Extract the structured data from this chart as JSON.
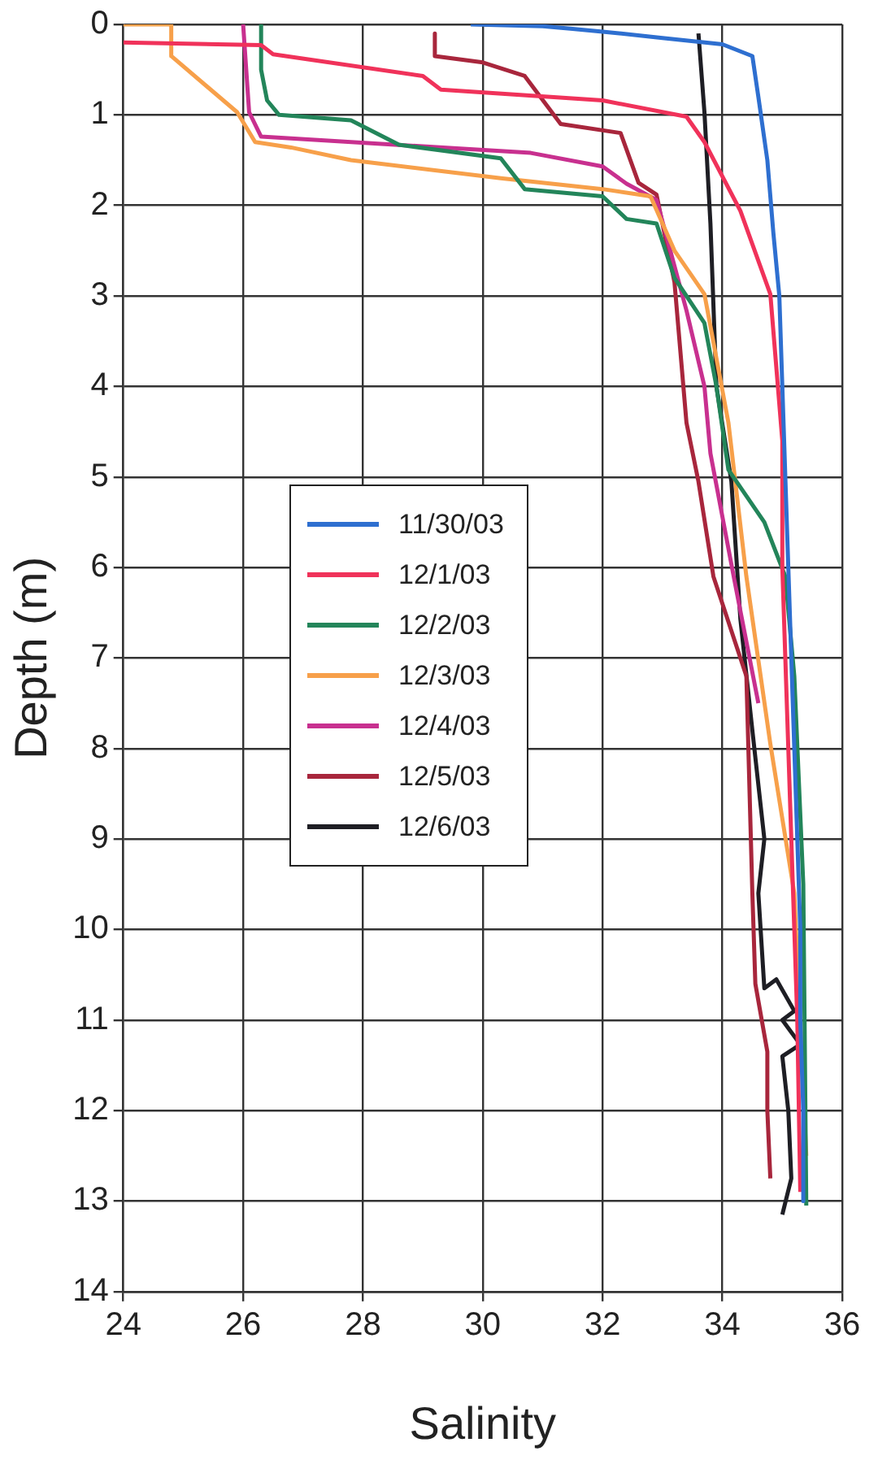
{
  "chart_data": {
    "type": "line",
    "xlabel": "Salinity",
    "ylabel": "Depth (m)",
    "xlim": [
      24,
      36
    ],
    "xticks": [
      24,
      26,
      28,
      30,
      32,
      34,
      36
    ],
    "ylim": [
      14,
      0
    ],
    "yticks": [
      0,
      1,
      2,
      3,
      4,
      5,
      6,
      7,
      8,
      9,
      10,
      11,
      12,
      13,
      14
    ],
    "grid": true,
    "legend": "left",
    "marker": "none",
    "line_style": "solid",
    "series": [
      {
        "name": "11/30/03",
        "color": "#2e6fd0",
        "x": [
          29.8,
          31,
          31.5,
          32,
          33,
          34,
          34.5,
          34.6,
          34.75,
          34.85,
          34.95,
          35.0,
          35.05,
          35.1,
          35.15,
          35.2,
          35.25,
          35.3,
          35.3,
          35.35,
          35.35
        ],
        "values": [
          0,
          0.02,
          0.05,
          0.08,
          0.15,
          0.22,
          0.35,
          0.8,
          1.5,
          2.3,
          3,
          4,
          5,
          6,
          7,
          8,
          9,
          10,
          11,
          12,
          13
        ]
      },
      {
        "name": "12/1/03",
        "color": "#f0325a",
        "x": [
          24,
          26.3,
          26.5,
          29,
          29.3,
          32,
          33.4,
          33.7,
          34.3,
          34.8,
          35,
          35.0,
          35.05,
          35.1,
          35.15,
          35.2,
          35.25,
          35.3
        ],
        "values": [
          0.2,
          0.23,
          0.33,
          0.57,
          0.72,
          0.84,
          1.02,
          1.3,
          2.06,
          2.98,
          4.6,
          6,
          7,
          8,
          9,
          10,
          11,
          12.9
        ]
      },
      {
        "name": "12/2/03",
        "color": "#23855a",
        "x": [
          26.3,
          26.3,
          26.4,
          26.6,
          27.8,
          28.6,
          30.3,
          30.7,
          32,
          32.4,
          32.9,
          33.2,
          33.7,
          33.9,
          34.1,
          34.7,
          35.05,
          35.2,
          35.35,
          35.4
        ],
        "values": [
          0,
          0.5,
          0.84,
          1.0,
          1.06,
          1.33,
          1.48,
          1.82,
          1.9,
          2.15,
          2.2,
          2.8,
          3.3,
          4.0,
          4.92,
          5.5,
          6.1,
          7.2,
          9.5,
          13.05
        ]
      },
      {
        "name": "12/3/03",
        "color": "#f7a04a",
        "x": [
          24,
          24.8,
          24.8,
          25.9,
          26.2,
          26.8,
          27.8,
          30.3,
          32,
          32.8,
          33.2,
          33.7,
          34.1,
          34.4,
          34.8,
          35.2,
          35.4
        ],
        "values": [
          0,
          0,
          0.35,
          0.97,
          1.3,
          1.36,
          1.5,
          1.7,
          1.82,
          1.9,
          2.5,
          2.98,
          4.4,
          6.1,
          7.95,
          9.6,
          12.5
        ]
      },
      {
        "name": "12/4/03",
        "color": "#c8308f",
        "x": [
          26,
          26.1,
          26.3,
          30.8,
          32,
          32.4,
          32.9,
          33.0,
          33.4,
          33.7,
          33.8,
          34.2,
          34.6
        ],
        "values": [
          0,
          0.97,
          1.24,
          1.42,
          1.57,
          1.76,
          1.94,
          2.18,
          3.16,
          4.0,
          4.74,
          6.14,
          7.5
        ]
      },
      {
        "name": "12/5/03",
        "color": "#a8263c",
        "x": [
          29.2,
          29.2,
          30,
          30.7,
          31.3,
          32.3,
          32.6,
          32.9,
          33.2,
          33.4,
          33.6,
          33.85,
          34.4,
          34.5,
          34.55,
          34.75,
          34.75,
          34.8
        ],
        "values": [
          0.1,
          0.35,
          0.42,
          0.57,
          1.1,
          1.2,
          1.75,
          1.88,
          2.85,
          4.4,
          5.05,
          6.1,
          7.2,
          9.6,
          10.6,
          11.35,
          12.0,
          12.75
        ]
      },
      {
        "name": "12/6/03",
        "color": "#1e1e24",
        "x": [
          33.6,
          33.7,
          33.8,
          33.9,
          34.15,
          34.3,
          34.5,
          34.7,
          34.6,
          34.7,
          34.9,
          35.2,
          35.0,
          35.3,
          35.0,
          35.1,
          35.15,
          35.0
        ],
        "values": [
          0.1,
          0.97,
          2.2,
          4.0,
          5.05,
          6.57,
          7.8,
          9.0,
          9.6,
          10.65,
          10.55,
          10.9,
          11.0,
          11.27,
          11.4,
          12.0,
          12.75,
          13.15
        ]
      }
    ]
  }
}
